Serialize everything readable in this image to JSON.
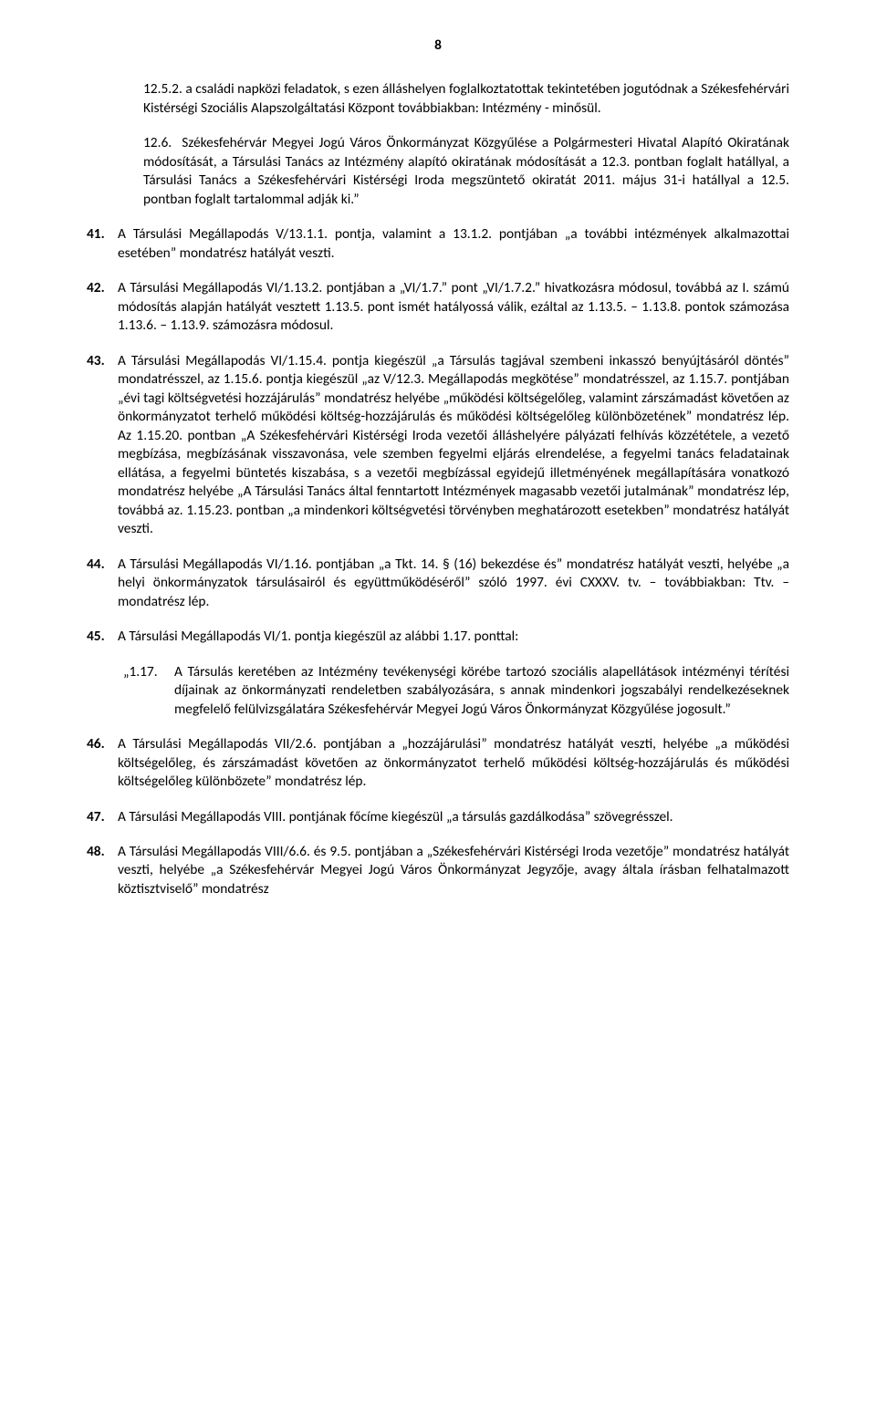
{
  "page_number": "8",
  "para_12_5_2": "12.5.2. a családi napközi feladatok, s ezen álláshelyen foglalkoztatottak tekintetében jogutódnak a Székesfehérvári Kistérségi Szociális Alapszolgáltatási Központ továbbiakban: Intézmény - minősül.",
  "para_12_6": "12.6.  Székesfehérvár Megyei Jogú Város Önkormányzat Közgyűlése a Polgármesteri Hivatal Alapító Okiratának módosítását, a Társulási Tanács az Intézmény alapító okiratának módosítását a 12.3. pontban foglalt hatállyal, a Társulási Tanács a Székesfehérvári Kistérségi Iroda megszüntető okiratát 2011. május 31-i hatállyal a 12.5. pontban foglalt tartalommal adják ki.”",
  "items": [
    {
      "num": "41.",
      "txt": "A Társulási Megállapodás V/13.1.1. pontja, valamint a 13.1.2. pontjában „a további intézmények alkalmazottai esetében” mondatrész hatályát veszti."
    },
    {
      "num": "42.",
      "txt": "A Társulási Megállapodás VI/1.13.2. pontjában a „VI/1.7.” pont „VI/1.7.2.” hivatkozásra módosul, továbbá az I. számú módosítás alapján hatályát vesztett 1.13.5. pont ismét hatályossá válik, ezáltal az 1.13.5. – 1.13.8. pontok számozása 1.13.6. – 1.13.9. számozásra módosul."
    },
    {
      "num": "43.",
      "txt": "A Társulási Megállapodás VI/1.15.4. pontja kiegészül „a Társulás tagjával szembeni inkasszó benyújtásáról döntés” mondatrésszel, az 1.15.6. pontja kiegészül „az V/12.3. Megállapodás megkötése” mondatrésszel, az 1.15.7. pontjában „évi tagi költségvetési hozzájárulás” mondatrész helyébe „működési költségelőleg, valamint zárszámadást követően az önkormányzatot terhelő működési költség-hozzájárulás és működési költségelőleg különbözetének” mondatrész lép. Az 1.15.20. pontban „A Székesfehérvári Kistérségi Iroda vezetői álláshelyére pályázati felhívás közzététele, a vezető megbízása, megbízásának visszavonása, vele szemben fegyelmi eljárás elrendelése, a fegyelmi tanács feladatainak ellátása, a fegyelmi büntetés kiszabása, s a vezetői megbízással egyidejű illetményének megállapítására vonatkozó mondatrész helyébe „A Társulási Tanács által fenntartott Intézmények magasabb vezetői jutalmának” mondatrész lép, továbbá az. 1.15.23. pontban „a mindenkori költségvetési törvényben meghatározott esetekben” mondatrész hatályát veszti."
    },
    {
      "num": "44.",
      "txt": "A Társulási Megállapodás VI/1.16. pontjában „a Tkt. 14. § (16) bekezdése és” mondatrész hatályát veszti, helyébe „a helyi önkormányzatok társulásairól és együttműködéséről” szóló 1997. évi CXXXV. tv. – továbbiakban: Ttv. – mondatrész lép."
    },
    {
      "num": "45.",
      "txt": "A Társulási Megállapodás VI/1. pontja kiegészül az alábbi 1.17. ponttal:"
    }
  ],
  "quote": {
    "qnum": "„1.17.",
    "qtxt": "A Társulás keretében az Intézmény tevékenységi körébe tartozó szociális alapellátások intézményi térítési díjainak az önkormányzati rendeletben szabályozására, s annak mindenkori jogszabályi rendelkezéseknek megfelelő felülvizsgálatára Székesfehérvár Megyei Jogú Város Önkormányzat Közgyűlése jogosult.”"
  },
  "items2": [
    {
      "num": "46.",
      "txt": "A Társulási Megállapodás VII/2.6. pontjában a „hozzájárulási” mondatrész hatályát veszti, helyébe „a működési költségelőleg, és zárszámadást követően az önkormányzatot terhelő működési költség-hozzájárulás és működési költségelőleg különbözete” mondatrész lép."
    },
    {
      "num": "47.",
      "txt": "A Társulási Megállapodás VIII. pontjának főcíme kiegészül „a társulás gazdálkodása” szövegrésszel."
    },
    {
      "num": "48.",
      "txt": "A Társulási Megállapodás VIII/6.6. és 9.5. pontjában a „Székesfehérvári Kistérségi Iroda vezetője” mondatrész hatályát veszti, helyébe „a Székesfehérvár Megyei Jogú Város Önkormányzat Jegyzője, avagy általa írásban felhatalmazott köztisztviselő” mondatrész"
    }
  ]
}
